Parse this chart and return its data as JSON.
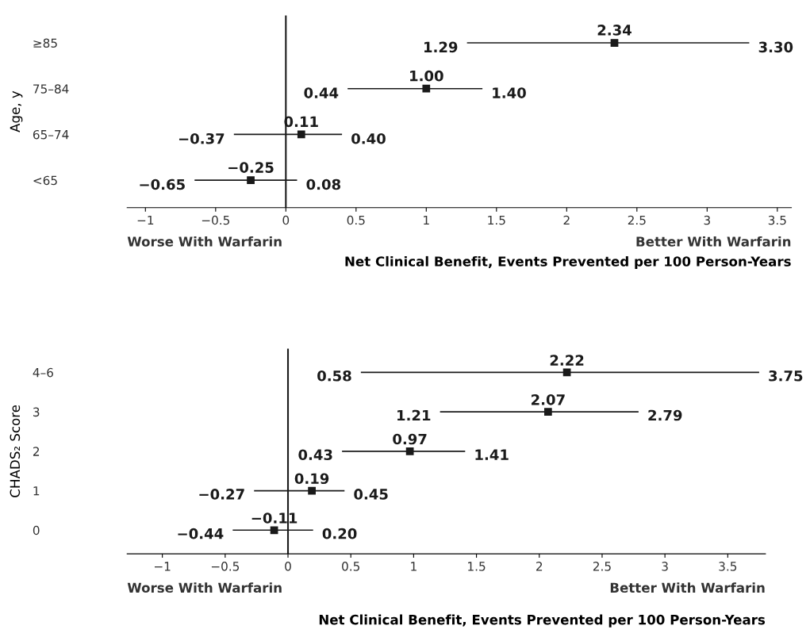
{
  "chart_data": [
    {
      "type": "scatter",
      "orientation": "horizontal",
      "ylabel": "Age, y",
      "xlabel": "Net Clinical Benefit, Events Prevented per 100 Person-Years",
      "categories": [
        "≥85",
        "75–84",
        "65–74",
        "<65"
      ],
      "values": [
        2.34,
        1.0,
        0.11,
        -0.25
      ],
      "value_labels": [
        "2.34",
        "1.00",
        "0.11",
        "−0.25"
      ],
      "errors": [
        [
          1.29,
          3.3
        ],
        [
          0.44,
          1.4
        ],
        [
          -0.37,
          0.4
        ],
        [
          -0.65,
          0.08
        ]
      ],
      "color": "#1a1a1a",
      "marker": "square",
      "grid": false,
      "legend": false,
      "xlim": [
        -1.13,
        3.6
      ],
      "xticks": [
        -1,
        -0.5,
        0,
        0.5,
        1,
        1.5,
        2,
        2.5,
        3,
        3.5
      ],
      "ref_lines": [
        {
          "axis": "x",
          "value": 0,
          "color": "#1a1a1a"
        }
      ],
      "annotations": [
        "Worse With Warfarin",
        "Better With Warfarin",
        {
          "text": "1.29",
          "x": 1.29,
          "y": "≥85"
        },
        {
          "text": "3.30",
          "x": 3.3,
          "y": "≥85"
        },
        {
          "text": "0.44",
          "x": 0.44,
          "y": "75–84"
        },
        {
          "text": "1.40",
          "x": 1.4,
          "y": "75–84"
        },
        {
          "text": "−0.37",
          "x": -0.37,
          "y": "65–74"
        },
        {
          "text": "0.40",
          "x": 0.4,
          "y": "65–74"
        },
        {
          "text": "−0.65",
          "x": -0.65,
          "y": "<65"
        },
        {
          "text": "0.08",
          "x": 0.08,
          "y": "<65"
        }
      ]
    },
    {
      "type": "scatter",
      "orientation": "horizontal",
      "ylabel": "CHADS₂ Score",
      "xlabel": "Net Clinical Benefit, Events Prevented per 100 Person-Years",
      "categories": [
        "4–6",
        "3",
        "2",
        "1",
        "0"
      ],
      "values": [
        2.22,
        2.07,
        0.97,
        0.19,
        -0.11
      ],
      "value_labels": [
        "2.22",
        "2.07",
        "0.97",
        "0.19",
        "−0.11"
      ],
      "errors": [
        [
          0.58,
          3.75
        ],
        [
          1.21,
          2.79
        ],
        [
          0.43,
          1.41
        ],
        [
          -0.27,
          0.45
        ],
        [
          -0.44,
          0.2
        ]
      ],
      "color": "#1a1a1a",
      "marker": "square",
      "grid": false,
      "legend": false,
      "xlim": [
        -1.28,
        3.8
      ],
      "xticks": [
        -1,
        -0.5,
        0,
        0.5,
        1,
        1.5,
        2,
        2.5,
        3,
        3.5
      ],
      "ref_lines": [
        {
          "axis": "x",
          "value": 0,
          "color": "#1a1a1a"
        }
      ],
      "annotations": [
        "Worse With Warfarin",
        "Better With Warfarin",
        {
          "text": "0.58",
          "x": 0.58,
          "y": "4–6"
        },
        {
          "text": "3.75",
          "x": 3.75,
          "y": "4–6"
        },
        {
          "text": "1.21",
          "x": 1.21,
          "y": "3"
        },
        {
          "text": "2.79",
          "x": 2.79,
          "y": "3"
        },
        {
          "text": "0.43",
          "x": 0.43,
          "y": "2"
        },
        {
          "text": "1.41",
          "x": 1.41,
          "y": "2"
        },
        {
          "text": "−0.27",
          "x": -0.27,
          "y": "1"
        },
        {
          "text": "0.45",
          "x": 0.45,
          "y": "1"
        },
        {
          "text": "−0.44",
          "x": -0.44,
          "y": "0"
        },
        {
          "text": "0.20",
          "x": 0.2,
          "y": "0"
        }
      ]
    }
  ]
}
